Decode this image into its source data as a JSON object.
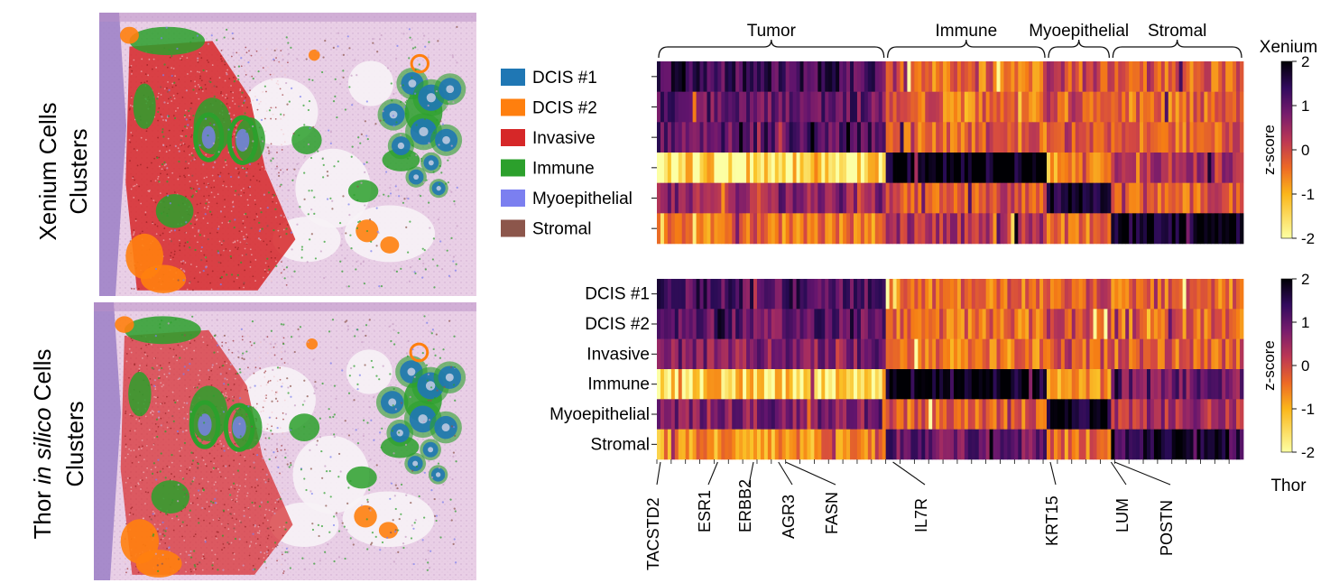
{
  "row_titles": {
    "top": [
      "Xenium Cells",
      "Clusters"
    ],
    "bottom_prefix": "Thor ",
    "bottom_italic": "in silico",
    "bottom_suffix": " Cells",
    "bottom_line2": "Clusters"
  },
  "legend": [
    {
      "label": "DCIS #1",
      "color": "#1f77b4"
    },
    {
      "label": "DCIS #2",
      "color": "#ff7f0e"
    },
    {
      "label": "Invasive",
      "color": "#d62728"
    },
    {
      "label": "Immune",
      "color": "#2ca02c"
    },
    {
      "label": "Myoepithelial",
      "color": "#7b7ff0"
    },
    {
      "label": "Stromal",
      "color": "#8c564b"
    }
  ],
  "tissue_colors": {
    "background": "#e9cfe6",
    "stroma_dark": "#b98fc6",
    "edge": "#9b7fc6",
    "white_space": "#f7f2f6"
  },
  "chart_data": [
    {
      "type": "heatmap",
      "name": "Xenium",
      "title": "Xenium",
      "colorbar_label": "z-score",
      "colorbar_ticks": [
        "2",
        "1",
        "0",
        "-1",
        "-2"
      ],
      "vmin": -2,
      "vmax": 2,
      "colormap": "inferno_r",
      "rows": [
        "DCIS #1",
        "DCIS #2",
        "Invasive",
        "Immune",
        "Myoepithelial",
        "Stromal"
      ],
      "show_row_labels": false,
      "column_groups": [
        {
          "label": "Tumor",
          "n_cols": 64
        },
        {
          "label": "Immune",
          "n_cols": 45
        },
        {
          "label": "Myoepithelial",
          "n_cols": 18
        },
        {
          "label": "Stromal",
          "n_cols": 37
        }
      ],
      "mean_zscore_by_group": [
        [
          1.2,
          -0.6,
          -0.2,
          -0.6
        ],
        [
          0.9,
          -0.6,
          -0.3,
          -0.6
        ],
        [
          1.0,
          -0.6,
          -0.3,
          -0.5
        ],
        [
          -1.7,
          2.0,
          -1.0,
          0.2
        ],
        [
          0.5,
          -0.4,
          1.8,
          -0.5
        ],
        [
          -0.8,
          0.2,
          -0.6,
          1.9
        ]
      ]
    },
    {
      "type": "heatmap",
      "name": "Thor",
      "title": "Thor",
      "colorbar_label": "z-score",
      "colorbar_ticks": [
        "2",
        "1",
        "0",
        "-1",
        "-2"
      ],
      "vmin": -2,
      "vmax": 2,
      "colormap": "inferno_r",
      "rows": [
        "DCIS #1",
        "DCIS #2",
        "Invasive",
        "Immune",
        "Myoepithelial",
        "Stromal"
      ],
      "show_row_labels": true,
      "column_groups": [
        {
          "label": "Tumor",
          "n_cols": 64
        },
        {
          "label": "Immune",
          "n_cols": 45
        },
        {
          "label": "Myoepithelial",
          "n_cols": 18
        },
        {
          "label": "Stromal",
          "n_cols": 37
        }
      ],
      "mean_zscore_by_group": [
        [
          1.1,
          -0.6,
          -0.4,
          -0.6
        ],
        [
          0.9,
          -0.6,
          -0.2,
          -0.6
        ],
        [
          0.6,
          -0.7,
          -0.4,
          -0.5
        ],
        [
          -1.6,
          1.9,
          -1.0,
          0.8
        ],
        [
          0.6,
          -0.5,
          1.9,
          0.2
        ],
        [
          -1.0,
          0.8,
          -0.7,
          1.4
        ]
      ],
      "gene_labels": [
        "TACSTD2",
        "ESR1",
        "ERBB2",
        "AGR3",
        "FASN",
        "IL7R",
        "KRT15",
        "LUM",
        "POSTN"
      ]
    }
  ]
}
